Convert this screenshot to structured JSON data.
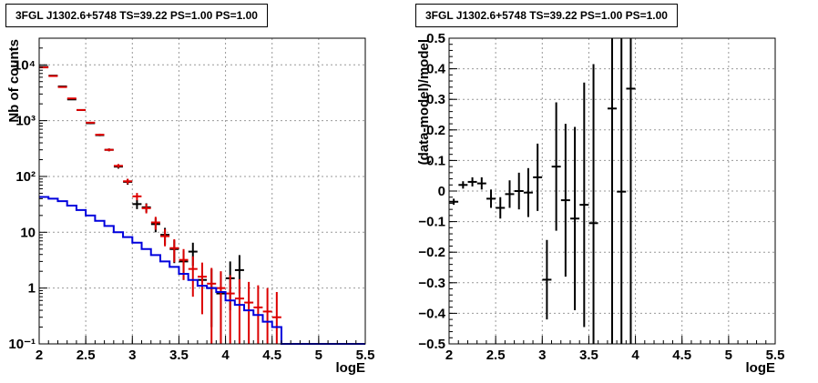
{
  "colors": {
    "data": "#000000",
    "model": "#dd0000",
    "background": "#0000dd",
    "grid": "#999999"
  },
  "chart_data": [
    {
      "type": "line",
      "title": "3FGL J1302.6+5748 TS=39.22 PS=1.00 PS=1.00",
      "xlabel": "logE",
      "ylabel": "Nb of counts",
      "xlim": [
        2,
        5.5
      ],
      "ylim": [
        0.1,
        30000
      ],
      "yscale": "log",
      "grid": true,
      "x_ticks": [
        "2",
        "2.5",
        "3",
        "3.5",
        "4",
        "4.5",
        "5",
        "5.5"
      ],
      "y_ticks": [
        "10⁻¹",
        "1",
        "10",
        "10²",
        "10³",
        "10⁴"
      ],
      "series": [
        {
          "name": "",
          "kind": "points-errorbars",
          "color": "#000000",
          "x": [
            2.05,
            2.15,
            2.25,
            2.35,
            2.45,
            2.55,
            2.65,
            2.75,
            2.85,
            2.95,
            3.05,
            3.15,
            3.25,
            3.35,
            3.45,
            3.55,
            3.65,
            3.75,
            3.85,
            3.95,
            4.05,
            4.15
          ],
          "y": [
            9200,
            6400,
            4100,
            2400,
            1550,
            900,
            550,
            300,
            150,
            80,
            32,
            28,
            14,
            9,
            5,
            3,
            4.5,
            1.4,
            1,
            0.8,
            1.5,
            2.1
          ],
          "yerr_lo": [
            100,
            80,
            60,
            50,
            40,
            30,
            23,
            17,
            12,
            9,
            6,
            5,
            4,
            3,
            2.2,
            1.6,
            2,
            1,
            0.8,
            0.7,
            1.1,
            1.3
          ],
          "yerr_hi": [
            100,
            80,
            60,
            50,
            40,
            30,
            23,
            17,
            12,
            9,
            6,
            5,
            4,
            3,
            2.2,
            1.6,
            2,
            1.3,
            1.2,
            1.1,
            1.5,
            1.8
          ]
        },
        {
          "name": "",
          "kind": "points-errorbars",
          "color": "#dd0000",
          "x": [
            2.05,
            2.15,
            2.25,
            2.35,
            2.45,
            2.55,
            2.65,
            2.75,
            2.85,
            2.95,
            3.05,
            3.15,
            3.25,
            3.35,
            3.45,
            3.55,
            3.65,
            3.75,
            3.85,
            3.95,
            4.05,
            4.15,
            4.25,
            4.35,
            4.45,
            4.55
          ],
          "y": [
            9000,
            6300,
            4000,
            2500,
            1550,
            920,
            560,
            300,
            155,
            82,
            44,
            27,
            15,
            8.5,
            5.2,
            3.2,
            2.2,
            1.6,
            1.2,
            1,
            0.8,
            0.65,
            0.55,
            0.45,
            0.38,
            0.3
          ],
          "yerr_lo": [
            95,
            80,
            63,
            50,
            39,
            30,
            24,
            17,
            12,
            9,
            6.6,
            5.2,
            3.9,
            2.9,
            2.3,
            1.8,
            1.5,
            1.26,
            1.1,
            1,
            0.8,
            0.65,
            0.55,
            0.45,
            0.38,
            0.3
          ],
          "yerr_hi": [
            95,
            80,
            63,
            50,
            39,
            30,
            24,
            17,
            12,
            9,
            6.6,
            5.2,
            3.9,
            2.9,
            2.3,
            1.8,
            1.5,
            1.26,
            1.1,
            1,
            0.9,
            0.8,
            0.74,
            0.67,
            0.62,
            0.55
          ]
        },
        {
          "name": "",
          "kind": "step",
          "color": "#0000dd",
          "edges": [
            2.0,
            2.1,
            2.2,
            2.3,
            2.4,
            2.5,
            2.6,
            2.7,
            2.8,
            2.9,
            3.0,
            3.1,
            3.2,
            3.3,
            3.4,
            3.5,
            3.6,
            3.7,
            3.8,
            3.9,
            4.0,
            4.1,
            4.2,
            4.3,
            4.4,
            4.5,
            4.6,
            5.5
          ],
          "values": [
            43,
            40,
            36,
            30,
            25,
            20,
            16,
            13,
            10,
            8.2,
            6.5,
            5,
            3.9,
            3,
            2.4,
            1.8,
            1.4,
            1.1,
            1,
            0.85,
            0.6,
            0.5,
            0.4,
            0.33,
            0.25,
            0.2,
            0.1
          ]
        }
      ]
    },
    {
      "type": "scatter",
      "title": "3FGL J1302.6+5748 TS=39.22 PS=1.00 PS=1.00",
      "xlabel": "logE",
      "ylabel": "(data-model)/model",
      "xlim": [
        2,
        5.5
      ],
      "ylim": [
        -0.5,
        0.5
      ],
      "grid": true,
      "x_ticks": [
        "2",
        "2.5",
        "3",
        "3.5",
        "4",
        "4.5",
        "5",
        "5.5"
      ],
      "y_ticks": [
        "−0.5",
        "−0.4",
        "−0.3",
        "−0.2",
        "−0.1",
        "0",
        "0.1",
        "0.2",
        "0.3",
        "0.4",
        "0.5"
      ],
      "series": [
        {
          "name": "",
          "color": "#000000",
          "x": [
            2.05,
            2.15,
            2.25,
            2.35,
            2.45,
            2.55,
            2.65,
            2.75,
            2.85,
            2.95,
            3.05,
            3.15,
            3.25,
            3.35,
            3.45,
            3.55,
            3.75,
            3.85,
            3.95
          ],
          "y": [
            -0.035,
            0.02,
            0.03,
            0.025,
            -0.025,
            -0.055,
            -0.01,
            0.0,
            -0.005,
            0.045,
            -0.29,
            0.08,
            -0.03,
            -0.09,
            -0.045,
            -0.105,
            0.27,
            -0.002,
            0.335
          ],
          "yerr": [
            0.01,
            0.012,
            0.015,
            0.02,
            0.03,
            0.035,
            0.045,
            0.06,
            0.08,
            0.11,
            0.13,
            0.21,
            0.25,
            0.3,
            0.4,
            0.52,
            0.8,
            0.9,
            1.0
          ]
        }
      ]
    }
  ]
}
